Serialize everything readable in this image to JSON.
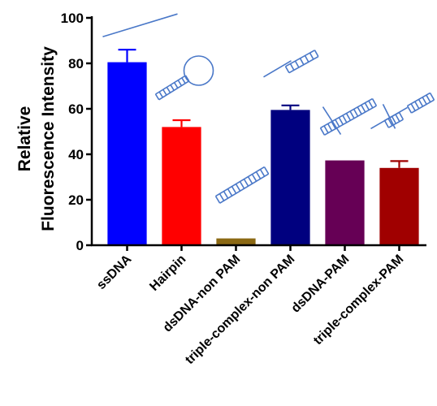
{
  "chart_data": {
    "type": "bar",
    "categories": [
      "ssDNA",
      "Hairpin",
      "dsDNA-non PAM",
      "triple-complex-non PAM",
      "dsDNA-PAM",
      "triple-complex-PAM"
    ],
    "values": [
      80.5,
      52,
      3,
      59.5,
      37.3,
      34
    ],
    "errors": [
      5.5,
      3,
      0,
      2,
      0,
      3
    ],
    "colors": [
      "#0000ff",
      "#ff0000",
      "#8b6914",
      "#00007f",
      "#660055",
      "#a00000"
    ],
    "ylabel": [
      "Relative",
      "Fluorescence Intensity"
    ],
    "xlabel": "",
    "ylim": [
      0,
      100
    ],
    "yticks": [
      0,
      20,
      40,
      60,
      80,
      100
    ],
    "icons": [
      "ssdna-line-icon",
      "hairpin-icon",
      "dsdna-icon",
      "partial-duplex-icon",
      "cas-bound-dsdna-icon",
      "cas-bound-triple-icon"
    ]
  }
}
